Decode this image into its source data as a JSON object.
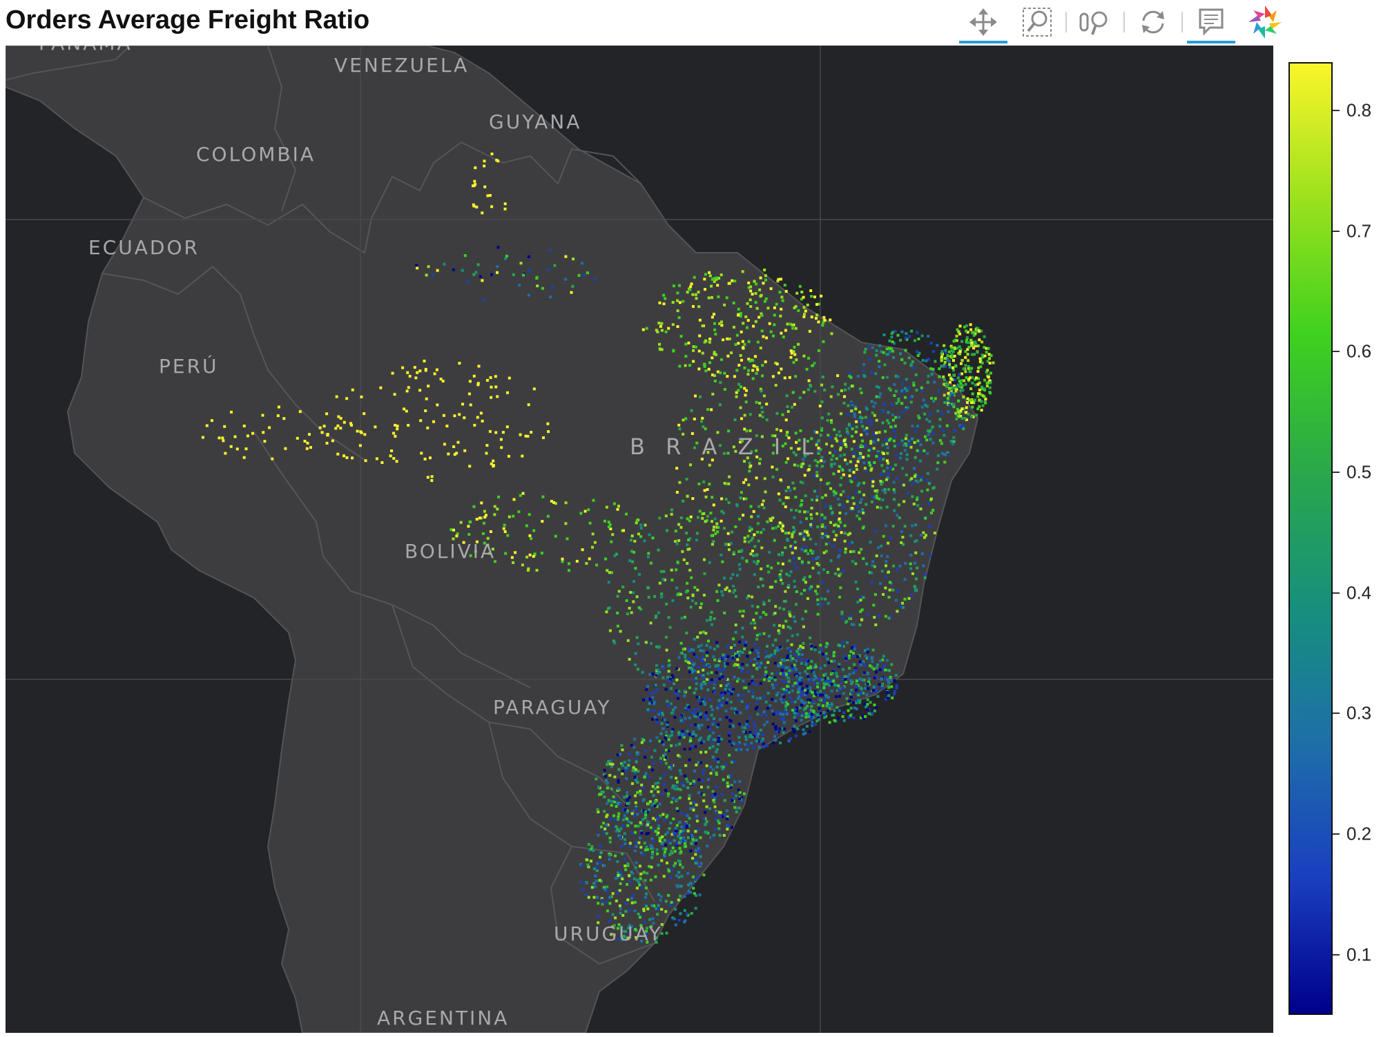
{
  "title": "Orders Average Freight Ratio",
  "toolbar": {
    "tools": [
      {
        "name": "pan-tool",
        "icon": "move-arrows-icon",
        "active": true
      },
      {
        "name": "box-zoom-tool",
        "icon": "box-zoom-icon",
        "active": false
      },
      {
        "name": "wheel-zoom-tool",
        "icon": "wheel-zoom-icon",
        "active": false
      },
      {
        "name": "reset-tool",
        "icon": "reset-icon",
        "active": false
      },
      {
        "name": "hover-tool",
        "icon": "tooltip-icon",
        "active": true
      },
      {
        "name": "bokeh-logo",
        "icon": "bokeh-logo-icon",
        "active": false
      }
    ]
  },
  "map": {
    "labels": [
      "PANAMA",
      "VENEZUELA",
      "GUYANA",
      "COLOMBIA",
      "ECUADOR",
      "PERÚ",
      "B R A Z I L",
      "BOLIVIA",
      "PARAGUAY",
      "URUGUAY",
      "ARGENTINA"
    ]
  },
  "colors": {
    "ocean": "#232428",
    "land": "#3d3d40",
    "border": "#545458",
    "label": "#a9a9ad",
    "accent": "#2a9bd8"
  },
  "colorbar": {
    "ticks": [
      "0.8",
      "0.7",
      "0.6",
      "0.5",
      "0.4",
      "0.3",
      "0.2",
      "0.1"
    ],
    "range": [
      0.05,
      0.84
    ],
    "palette": [
      "#00008b",
      "#1a3fbf",
      "#1e6fa8",
      "#16907c",
      "#2aa84a",
      "#3ed11f",
      "#9be11e",
      "#fbf52a"
    ]
  }
}
